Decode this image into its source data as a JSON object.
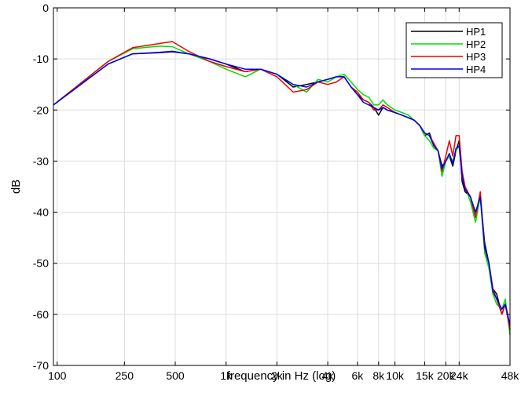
{
  "chart_data": {
    "type": "line",
    "xlabel": "frequency in Hz (log)",
    "ylabel": "dB",
    "xscale": "log",
    "xlim": [
      95,
      48000
    ],
    "ylim": [
      -70,
      0
    ],
    "grid": true,
    "legend_position": "top-right",
    "x_ticks": [
      {
        "value": 100,
        "label": "100"
      },
      {
        "value": 250,
        "label": "250"
      },
      {
        "value": 500,
        "label": "500"
      },
      {
        "value": 1000,
        "label": "1k"
      },
      {
        "value": 2000,
        "label": "2k"
      },
      {
        "value": 4000,
        "label": "4k"
      },
      {
        "value": 6000,
        "label": "6k"
      },
      {
        "value": 8000,
        "label": "8k"
      },
      {
        "value": 10000,
        "label": "10k"
      },
      {
        "value": 15000,
        "label": "15k"
      },
      {
        "value": 20000,
        "label": "20k"
      },
      {
        "value": 24000,
        "label": "24k"
      },
      {
        "value": 48000,
        "label": "48k"
      }
    ],
    "y_ticks": [
      0,
      -10,
      -20,
      -30,
      -40,
      -50,
      -60,
      -70
    ],
    "series": [
      {
        "name": "HP1",
        "color": "#000000",
        "x": [
          95,
          200,
          280,
          400,
          480,
          600,
          800,
          1000,
          1300,
          1600,
          2000,
          2500,
          3000,
          3500,
          4000,
          4500,
          5000,
          5500,
          6000,
          6500,
          7000,
          7500,
          8000,
          8500,
          9000,
          10000,
          11000,
          12000,
          13000,
          14000,
          15000,
          16000,
          17000,
          18000,
          19000,
          20000,
          21000,
          22000,
          23000,
          24000,
          25000,
          26000,
          28000,
          30000,
          32000,
          34000,
          36000,
          38000,
          40000,
          43000,
          45000,
          48000
        ],
        "y": [
          -19,
          -11,
          -9,
          -8.8,
          -8.6,
          -9,
          -10,
          -11,
          -12.5,
          -12,
          -13,
          -15.5,
          -15,
          -14.5,
          -14,
          -13.5,
          -13.5,
          -15.5,
          -17,
          -18,
          -18.5,
          -19.5,
          -21,
          -19.5,
          -20,
          -20.5,
          -21,
          -21.5,
          -22,
          -23,
          -25,
          -24.5,
          -27,
          -28,
          -31,
          -30,
          -29,
          -31,
          -28,
          -26,
          -34,
          -36,
          -37,
          -41,
          -37,
          -46,
          -50,
          -55,
          -56,
          -60,
          -58,
          -63
        ]
      },
      {
        "name": "HP2",
        "color": "#00dd00",
        "x": [
          95,
          200,
          280,
          400,
          480,
          600,
          800,
          1000,
          1300,
          1600,
          2000,
          2500,
          3000,
          3500,
          4000,
          4500,
          5000,
          5500,
          6000,
          6500,
          7000,
          7500,
          8000,
          8500,
          9000,
          10000,
          11000,
          12000,
          13000,
          14000,
          15000,
          16000,
          17000,
          18000,
          19000,
          20000,
          21000,
          22000,
          23000,
          24000,
          25000,
          26000,
          28000,
          30000,
          32000,
          34000,
          36000,
          38000,
          40000,
          43000,
          45000,
          48000
        ],
        "y": [
          -19,
          -10.5,
          -8,
          -7.5,
          -7.6,
          -9,
          -10.5,
          -12,
          -13.5,
          -12,
          -13,
          -15,
          -16.5,
          -14,
          -14.5,
          -13.5,
          -13,
          -14.5,
          -16,
          -17,
          -17.5,
          -19,
          -19,
          -18,
          -19,
          -20,
          -20.5,
          -21,
          -22,
          -23,
          -25,
          -26,
          -27.5,
          -28,
          -33,
          -30,
          -29,
          -30,
          -28,
          -27,
          -33,
          -35,
          -38,
          -42,
          -37,
          -48,
          -51,
          -56,
          -58,
          -59,
          -57,
          -64
        ]
      },
      {
        "name": "HP3",
        "color": "#ee0000",
        "x": [
          95,
          200,
          280,
          400,
          480,
          600,
          800,
          1000,
          1300,
          1600,
          2000,
          2500,
          3000,
          3500,
          4000,
          4500,
          5000,
          5500,
          6000,
          6500,
          7000,
          7500,
          8000,
          8500,
          9000,
          10000,
          11000,
          12000,
          13000,
          14000,
          15000,
          16000,
          17000,
          18000,
          19000,
          20000,
          21000,
          22000,
          23000,
          24000,
          25000,
          26000,
          28000,
          30000,
          32000,
          34000,
          36000,
          38000,
          40000,
          43000,
          45000,
          48000
        ],
        "y": [
          -19,
          -10.5,
          -7.8,
          -7,
          -6.6,
          -8.5,
          -10.5,
          -11.5,
          -12.5,
          -12,
          -13.5,
          -16.5,
          -16,
          -14.5,
          -15,
          -14.5,
          -13.5,
          -15.5,
          -16.5,
          -18,
          -18.5,
          -20,
          -20,
          -19,
          -19.5,
          -20.5,
          -21,
          -21.5,
          -22,
          -23,
          -24.5,
          -25,
          -26.5,
          -28,
          -32,
          -29,
          -26,
          -29,
          -25,
          -25,
          -32,
          -35,
          -37,
          -41,
          -36,
          -47,
          -50,
          -55,
          -57,
          -60,
          -58,
          -63
        ]
      },
      {
        "name": "HP4",
        "color": "#0000ee",
        "x": [
          95,
          200,
          280,
          400,
          480,
          600,
          800,
          1000,
          1300,
          1600,
          2000,
          2500,
          3000,
          3500,
          4000,
          4500,
          5000,
          5500,
          6000,
          6500,
          7000,
          7500,
          8000,
          8500,
          9000,
          10000,
          11000,
          12000,
          13000,
          14000,
          15000,
          16000,
          17000,
          18000,
          19000,
          20000,
          21000,
          22000,
          23000,
          24000,
          25000,
          26000,
          28000,
          30000,
          32000,
          34000,
          36000,
          38000,
          40000,
          43000,
          45000,
          48000
        ],
        "y": [
          -19,
          -11,
          -9,
          -8.7,
          -8.5,
          -9,
          -10,
          -11,
          -12,
          -12,
          -13,
          -15,
          -15.5,
          -14.5,
          -14,
          -13.5,
          -13.5,
          -15.5,
          -17,
          -18.5,
          -19,
          -19.5,
          -20,
          -19.5,
          -20,
          -20.5,
          -21,
          -21.5,
          -22,
          -23,
          -24.5,
          -25,
          -27,
          -28,
          -31.5,
          -30,
          -28.5,
          -30.5,
          -27.5,
          -27,
          -33,
          -35.5,
          -37,
          -40,
          -37,
          -47,
          -50,
          -55.5,
          -57,
          -59,
          -58,
          -62
        ]
      }
    ]
  }
}
